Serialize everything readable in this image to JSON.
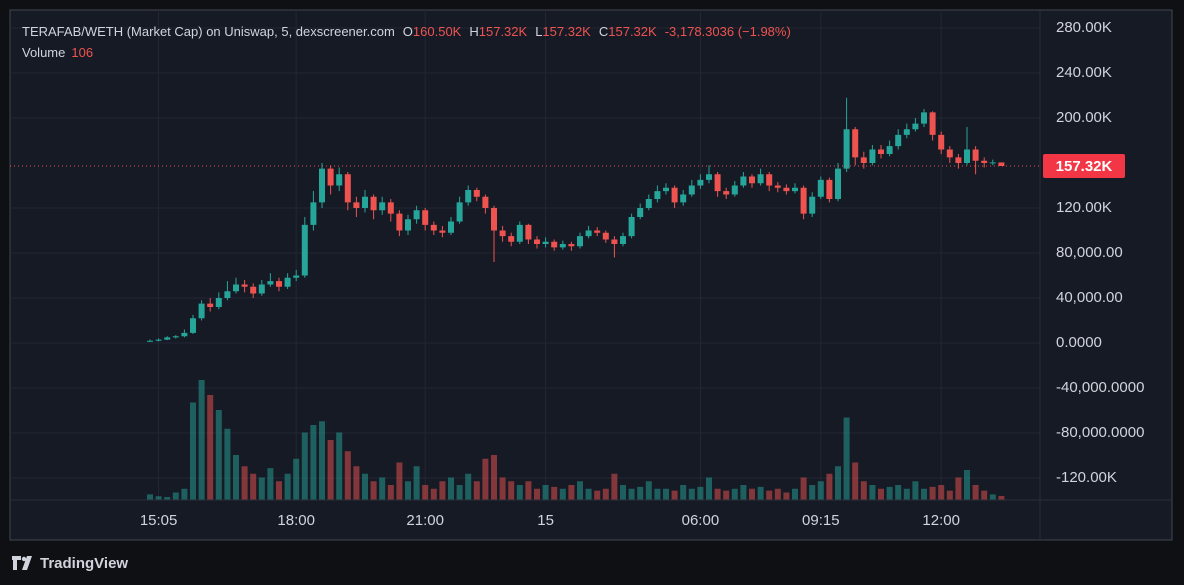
{
  "chart_data": {
    "type": "candlestick",
    "title": "TERAFAB/WETH (Market Cap) on Uniswap, 5, dexscreener.com",
    "ohlc_legend": [
      {
        "key": "O",
        "label": "160.50K"
      },
      {
        "key": "H",
        "label": "157.32K"
      },
      {
        "key": "L",
        "label": "157.32K"
      },
      {
        "key": "C",
        "label": "157.32K"
      }
    ],
    "change": "-3,178.3036 (−1.98%)",
    "volume_label": "Volume",
    "last_price": {
      "value": 157320,
      "label": "157.32K"
    },
    "up_color": "#26a69a",
    "down_color": "#ef5350",
    "categories": [
      null,
      "15:05",
      null,
      null,
      null,
      null,
      null,
      null,
      null,
      null,
      null,
      null,
      null,
      null,
      null,
      null,
      null,
      "18:00",
      null,
      null,
      null,
      null,
      null,
      null,
      null,
      null,
      null,
      null,
      null,
      null,
      null,
      null,
      "21:00",
      null,
      null,
      null,
      null,
      null,
      null,
      null,
      null,
      null,
      null,
      null,
      null,
      null,
      "15",
      null,
      null,
      null,
      null,
      null,
      null,
      null,
      null,
      null,
      null,
      null,
      null,
      null,
      null,
      null,
      null,
      null,
      "06:00",
      null,
      null,
      null,
      null,
      null,
      null,
      null,
      null,
      null,
      null,
      null,
      null,
      null,
      "09:15",
      null,
      null,
      null,
      null,
      null,
      null,
      null,
      null,
      null,
      null,
      null,
      null,
      null,
      "12:00",
      null,
      null,
      null,
      null,
      null,
      null,
      null
    ],
    "open": [
      1500,
      2000,
      3000,
      5000,
      6000,
      9000,
      22000,
      35000,
      32000,
      40000,
      46000,
      52000,
      50000,
      44000,
      52000,
      55000,
      50000,
      58000,
      60000,
      105000,
      125000,
      155000,
      140000,
      150000,
      125000,
      120000,
      130000,
      118000,
      125000,
      115000,
      100000,
      110000,
      118000,
      105000,
      100000,
      98000,
      108000,
      125000,
      136000,
      130000,
      120000,
      100000,
      95000,
      90000,
      105000,
      92000,
      88000,
      90000,
      85000,
      88000,
      86000,
      95000,
      100000,
      98000,
      92000,
      88000,
      95000,
      112000,
      120000,
      128000,
      135000,
      138000,
      125000,
      132000,
      140000,
      145000,
      150000,
      135000,
      132000,
      140000,
      148000,
      142000,
      150000,
      140000,
      138000,
      135000,
      138000,
      115000,
      130000,
      145000,
      128000,
      155000,
      190000,
      165000,
      160000,
      172000,
      168000,
      175000,
      185000,
      190000,
      195000,
      205000,
      185000,
      172000,
      165000,
      160000,
      172000,
      162000,
      160000,
      160500
    ],
    "high": [
      3000,
      4000,
      6000,
      7000,
      12000,
      25000,
      38000,
      40000,
      45000,
      55000,
      58000,
      56000,
      53000,
      56000,
      62000,
      58000,
      62000,
      65000,
      112000,
      135000,
      160000,
      158000,
      156000,
      152000,
      130000,
      136000,
      132000,
      130000,
      128000,
      118000,
      114000,
      122000,
      120000,
      108000,
      104000,
      112000,
      130000,
      140000,
      138000,
      132000,
      122000,
      104000,
      98000,
      108000,
      106000,
      95000,
      94000,
      92000,
      91000,
      90000,
      98000,
      104000,
      103000,
      100000,
      95000,
      98000,
      115000,
      124000,
      132000,
      140000,
      142000,
      140000,
      136000,
      145000,
      150000,
      158000,
      152000,
      138000,
      144000,
      152000,
      150000,
      155000,
      152000,
      143000,
      141000,
      142000,
      140000,
      134000,
      148000,
      147000,
      160000,
      218000,
      192000,
      170000,
      176000,
      176000,
      180000,
      190000,
      195000,
      200000,
      208000,
      206000,
      188000,
      175000,
      168000,
      192000,
      175000,
      165000,
      163000,
      157320
    ],
    "low": [
      1000,
      1500,
      2500,
      4000,
      5000,
      8000,
      20000,
      28000,
      30000,
      38000,
      44000,
      45000,
      40000,
      42000,
      50000,
      46000,
      48000,
      55000,
      58000,
      100000,
      120000,
      132000,
      135000,
      118000,
      112000,
      116000,
      110000,
      114000,
      108000,
      95000,
      96000,
      106000,
      100000,
      96000,
      94000,
      96000,
      106000,
      122000,
      126000,
      115000,
      72000,
      90000,
      86000,
      88000,
      88000,
      84000,
      85000,
      82000,
      83000,
      82000,
      84000,
      93000,
      95000,
      89000,
      76000,
      86000,
      93000,
      110000,
      118000,
      125000,
      132000,
      120000,
      122000,
      130000,
      137000,
      142000,
      130000,
      128000,
      130000,
      138000,
      138000,
      140000,
      135000,
      134000,
      132000,
      133000,
      110000,
      112000,
      128000,
      125000,
      126000,
      152000,
      158000,
      155000,
      158000,
      164000,
      166000,
      172000,
      182000,
      188000,
      192000,
      180000,
      168000,
      160000,
      155000,
      158000,
      150000,
      156000,
      158000,
      157320
    ],
    "close": [
      2000,
      3000,
      5000,
      6000,
      9000,
      22000,
      35000,
      32000,
      40000,
      46000,
      52000,
      50000,
      44000,
      52000,
      55000,
      50000,
      58000,
      60000,
      105000,
      125000,
      155000,
      140000,
      150000,
      125000,
      120000,
      130000,
      118000,
      125000,
      115000,
      100000,
      110000,
      118000,
      105000,
      100000,
      98000,
      108000,
      125000,
      136000,
      130000,
      120000,
      100000,
      95000,
      90000,
      105000,
      92000,
      88000,
      90000,
      85000,
      88000,
      86000,
      95000,
      100000,
      98000,
      92000,
      88000,
      95000,
      112000,
      120000,
      128000,
      135000,
      138000,
      125000,
      132000,
      140000,
      145000,
      150000,
      135000,
      132000,
      140000,
      148000,
      142000,
      150000,
      140000,
      138000,
      135000,
      138000,
      115000,
      130000,
      145000,
      128000,
      155000,
      190000,
      165000,
      160000,
      172000,
      168000,
      175000,
      185000,
      190000,
      195000,
      205000,
      185000,
      172000,
      165000,
      160000,
      172000,
      162000,
      160000,
      160500,
      157320
    ],
    "volume": [
      150,
      100,
      80,
      200,
      300,
      2600,
      3200,
      2800,
      2400,
      1900,
      1200,
      900,
      700,
      600,
      850,
      500,
      700,
      1100,
      1800,
      2000,
      2100,
      1600,
      1800,
      1300,
      900,
      700,
      500,
      600,
      400,
      1000,
      500,
      900,
      400,
      300,
      500,
      600,
      400,
      700,
      500,
      1100,
      1200,
      600,
      500,
      400,
      500,
      300,
      400,
      350,
      300,
      400,
      500,
      300,
      250,
      300,
      700,
      400,
      300,
      350,
      500,
      300,
      300,
      250,
      400,
      300,
      350,
      600,
      300,
      250,
      300,
      400,
      300,
      350,
      250,
      300,
      200,
      300,
      600,
      400,
      500,
      700,
      900,
      2200,
      1000,
      500,
      400,
      300,
      350,
      400,
      300,
      500,
      300,
      350,
      400,
      250,
      600,
      800,
      400,
      250,
      150,
      106
    ],
    "ylim": [
      -139556,
      296000
    ],
    "yticks": [
      {
        "value": 280000,
        "label": "280.00K"
      },
      {
        "value": 240000,
        "label": "240.00K"
      },
      {
        "value": 200000,
        "label": "200.00K"
      },
      {
        "value": 120000,
        "label": "120.00K"
      },
      {
        "value": 80000,
        "label": "80,000.00"
      },
      {
        "value": 40000,
        "label": "40,000.00"
      },
      {
        "value": 0,
        "label": "0.0000"
      },
      {
        "value": -40000,
        "label": "-40,000.0000"
      },
      {
        "value": -80000,
        "label": "-80,000.0000"
      },
      {
        "value": -120000,
        "label": "-120.00K"
      }
    ],
    "grid": true
  },
  "footer": {
    "brand": "TradingView"
  }
}
